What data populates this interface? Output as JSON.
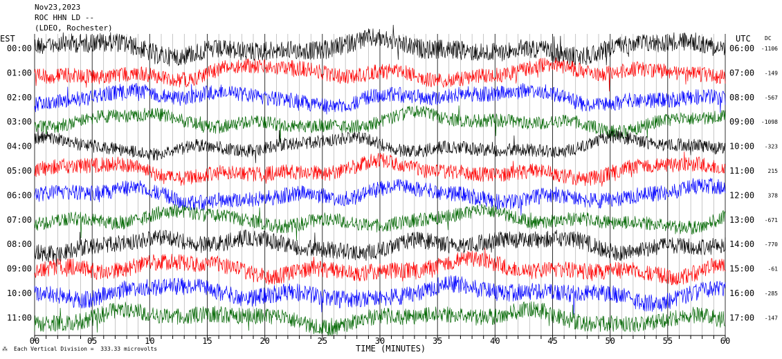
{
  "header": {
    "date": "Nov23,2023",
    "station": "ROC HHN LD --",
    "network": "(LDEO, Rochester)"
  },
  "left_zone_label": "EST",
  "right_zone_label": "UTC",
  "dc_label": "DC",
  "footer": {
    "xlabel": "TIME (MINUTES)",
    "scale_note": "Each Vertical Division =  333.33 microvolts"
  },
  "colors": {
    "black": "#000000",
    "red": "#ff0000",
    "blue": "#0000ff",
    "green": "#006600",
    "grid": "#000000"
  },
  "chart_data": {
    "type": "line",
    "title": "",
    "xlabel": "TIME (MINUTES)",
    "xlim": [
      0,
      60
    ],
    "x_ticks": [
      "00",
      "05",
      "10",
      "15",
      "20",
      "25",
      "30",
      "35",
      "40",
      "45",
      "50",
      "55",
      "60"
    ],
    "rows": [
      {
        "est": "00:00",
        "utc": "06:00",
        "dc": "-1106",
        "color": "black"
      },
      {
        "est": "01:00",
        "utc": "07:00",
        "dc": "-149",
        "color": "red"
      },
      {
        "est": "02:00",
        "utc": "08:00",
        "dc": "-567",
        "color": "blue"
      },
      {
        "est": "03:00",
        "utc": "09:00",
        "dc": "-1098",
        "color": "green"
      },
      {
        "est": "04:00",
        "utc": "10:00",
        "dc": "-323",
        "color": "black"
      },
      {
        "est": "05:00",
        "utc": "11:00",
        "dc": "215",
        "color": "red"
      },
      {
        "est": "06:00",
        "utc": "12:00",
        "dc": "378",
        "color": "blue"
      },
      {
        "est": "07:00",
        "utc": "13:00",
        "dc": "-671",
        "color": "green"
      },
      {
        "est": "08:00",
        "utc": "14:00",
        "dc": "-770",
        "color": "black"
      },
      {
        "est": "09:00",
        "utc": "15:00",
        "dc": "-61",
        "color": "red"
      },
      {
        "est": "10:00",
        "utc": "16:00",
        "dc": "-285",
        "color": "blue"
      },
      {
        "est": "11:00",
        "utc": "17:00",
        "dc": "-147",
        "color": "green"
      }
    ]
  }
}
